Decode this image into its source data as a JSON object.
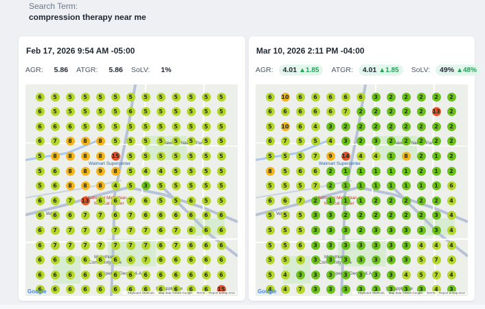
{
  "search": {
    "label": "Search Term:",
    "term": "compression therapy near me"
  },
  "reports": [
    {
      "date": "Feb 17, 2026 9:54 AM -05:00",
      "metrics": [
        {
          "label": "AGR:",
          "value": "5.86",
          "delta": null
        },
        {
          "label": "ATGR:",
          "value": "5.86",
          "delta": null
        },
        {
          "label": "SoLV:",
          "value": "1%",
          "delta": null
        }
      ],
      "grid": [
        [
          "6",
          "5",
          "5",
          "5",
          "5",
          "5",
          "5",
          "5",
          "5",
          "5",
          "5",
          "5",
          "5"
        ],
        [
          "6",
          "5",
          "5",
          "5",
          "5",
          "5",
          "6",
          "5",
          "5",
          "5",
          "5",
          "5",
          "5"
        ],
        [
          "6",
          "6",
          "6",
          "5",
          "5",
          "5",
          "5",
          "5",
          "5",
          "5",
          "5",
          "5",
          "5"
        ],
        [
          "6",
          "7",
          "8",
          "8",
          "8",
          "5",
          "5",
          "5",
          "5",
          "5",
          "5",
          "5",
          "5"
        ],
        [
          "5",
          "8",
          "8",
          "8",
          "8",
          "15",
          "5",
          "5",
          "5",
          "5",
          "5",
          "5",
          "5"
        ],
        [
          "5",
          "6",
          "8",
          "8",
          "9",
          "8",
          "5",
          "4",
          "4",
          "5",
          "5",
          "5",
          "5"
        ],
        [
          "5",
          "6",
          "8",
          "8",
          "8",
          "4",
          "5",
          "3",
          "5",
          "5",
          "5",
          "5",
          "5"
        ],
        [
          "6",
          "6",
          "7",
          "13",
          "6",
          "6",
          "7",
          "6",
          "5",
          "5",
          "6",
          "5",
          "5"
        ],
        [
          "6",
          "6",
          "6",
          "7",
          "7",
          "6",
          "7",
          "6",
          "6",
          "6",
          "6",
          "6",
          "6"
        ],
        [
          "6",
          "7",
          "7",
          "7",
          "7",
          "7",
          "7",
          "7",
          "6",
          "7",
          "6",
          "6",
          "6"
        ],
        [
          "6",
          "7",
          "7",
          "7",
          "7",
          "7",
          "7",
          "7",
          "6",
          "7",
          "6",
          "6",
          "6"
        ],
        [
          "6",
          "6",
          "6",
          "6",
          "6",
          "6",
          "6",
          "7",
          "6",
          "6",
          "6",
          "6",
          "6"
        ],
        [
          "6",
          "6",
          "6",
          "6",
          "6",
          "6",
          "6",
          "6",
          "6",
          "6",
          "6",
          "6",
          "6"
        ],
        [
          "6",
          "6",
          "6",
          "6",
          "6",
          "6",
          "6",
          "6",
          "6",
          "6",
          "6",
          "6",
          "15"
        ]
      ]
    },
    {
      "date": "Mar 10, 2026 2:11 PM -04:00",
      "metrics": [
        {
          "label": "AGR:",
          "value": "4.01",
          "delta": "1.85"
        },
        {
          "label": "ATGR:",
          "value": "4.01",
          "delta": "1.85"
        },
        {
          "label": "SoLV:",
          "value": "49%",
          "delta": "48%"
        }
      ],
      "grid": [
        [
          "6",
          "10",
          "6",
          "6",
          "6",
          "6",
          "6",
          "3",
          "2",
          "2",
          "2",
          "2",
          "2"
        ],
        [
          "6",
          "6",
          "6",
          "6",
          "6",
          "7",
          "2",
          "2",
          "2",
          "2",
          "2",
          "13",
          "2"
        ],
        [
          "5",
          "10",
          "6",
          "4",
          "3",
          "2",
          "2",
          "2",
          "2",
          "2",
          "2",
          "2",
          "2"
        ],
        [
          "6",
          "7",
          "5",
          "5",
          "4",
          "3",
          "2",
          "3",
          "2",
          "2",
          "2",
          "2",
          "2"
        ],
        [
          "5",
          "5",
          "5",
          "7",
          "9",
          "14",
          "4",
          "4",
          "1",
          "8",
          "2",
          "1",
          "2"
        ],
        [
          "8",
          "5",
          "6",
          "6",
          "2",
          "1",
          "1",
          "1",
          "1",
          "1",
          "2",
          "1",
          "2"
        ],
        [
          "5",
          "5",
          "5",
          "7",
          "2",
          "1",
          "1",
          "1",
          "1",
          "1",
          "1",
          "1",
          "6"
        ],
        [
          "6",
          "6",
          "7",
          "2",
          "1",
          "1",
          "1",
          "2",
          "2",
          "2",
          "2",
          "2",
          "4"
        ],
        [
          "5",
          "5",
          "5",
          "3",
          "3",
          "2",
          "2",
          "2",
          "2",
          "2",
          "2",
          "3",
          "4"
        ],
        [
          "5",
          "5",
          "5",
          "3",
          "3",
          "3",
          "2",
          "3",
          "3",
          "3",
          "3",
          "3",
          "4"
        ],
        [
          "5",
          "5",
          "6",
          "3",
          "3",
          "3",
          "3",
          "3",
          "3",
          "3",
          "4",
          "4",
          "4"
        ],
        [
          "5",
          "5",
          "4",
          "3",
          "3",
          "3",
          "3",
          "3",
          "3",
          "3",
          "5",
          "7",
          "4"
        ],
        [
          "5",
          "4",
          "3",
          "3",
          "3",
          "3",
          "3",
          "3",
          "3",
          "4",
          "5",
          "7",
          "4"
        ],
        [
          "4",
          "4",
          "7",
          "3",
          "3",
          "3",
          "3",
          "3",
          "3",
          "3",
          "3",
          "4",
          "3"
        ]
      ]
    }
  ],
  "map_labels": {
    "walmart": "Walmart Supercenter",
    "methodist": "Methodist Midlothian",
    "methodist2": "Medical Center",
    "ward": "WARD",
    "community_park": "Midlothian",
    "community_park2": "Community Park",
    "speedy": "Speedy Electric & A/C",
    "appliance": "Mr. Appliance",
    "nature_park": "Hawkins Nature Park",
    "google": "Google",
    "shortcuts": "Keyboard shortcuts",
    "mapdata": "Map data ©2026 Google",
    "terms": "Terms",
    "report": "Report a map error"
  },
  "colors": {
    "rank_1_3": "#6cc11a",
    "rank_4_7": "#b5d62a",
    "rank_8_10": "#f3b51d",
    "rank_11_plus": "#e5532d",
    "accent_green": "#22a35a"
  }
}
